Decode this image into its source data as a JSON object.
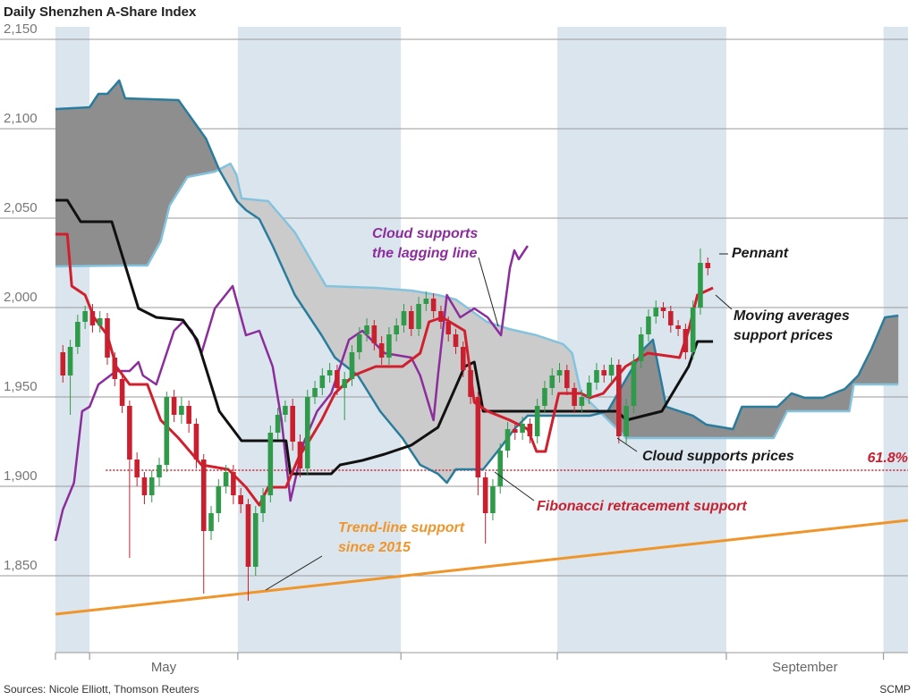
{
  "chart_data": {
    "type": "candlestick",
    "title": "Daily Shenzhen A-Share Index",
    "source": "Sources: Nicole Elliott, Thomson Reuters",
    "credit": "SCMP",
    "xlim": [
      0,
      115
    ],
    "ylim": [
      1807,
      2157
    ],
    "yticks": [
      {
        "value": 1850,
        "label": "1,850"
      },
      {
        "value": 1900,
        "label": "1,900"
      },
      {
        "value": 1950,
        "label": "1,950"
      },
      {
        "value": 2000,
        "label": "2,000"
      },
      {
        "value": 2050,
        "label": "2,050"
      },
      {
        "value": 2100,
        "label": "2,100"
      },
      {
        "value": 2150,
        "label": "2,150"
      }
    ],
    "grid": true,
    "months": {
      "starts": [
        0,
        4.6,
        24.6,
        46.6,
        67.7,
        90.5,
        111.7
      ],
      "labels": [
        null,
        "May",
        null,
        null,
        null,
        "September",
        null
      ],
      "shade_color": "#dbe5ed"
    },
    "candles": {
      "up_color": "#2f9a4a",
      "down_color": "#c8202f",
      "x": [
        1,
        2,
        3,
        4,
        5,
        6,
        7,
        8,
        9,
        10,
        11,
        12,
        13,
        14,
        15,
        16,
        17,
        18,
        19,
        20,
        21,
        22,
        23,
        24,
        25,
        26,
        27,
        28,
        29,
        30,
        31,
        32,
        33,
        34,
        35,
        36,
        37,
        38,
        39,
        40,
        41,
        42,
        43,
        44,
        45,
        46,
        47,
        48,
        49,
        50,
        51,
        52,
        53,
        54,
        55,
        56,
        57,
        58,
        59,
        60,
        61,
        62,
        63,
        64,
        65,
        66,
        67,
        68,
        69,
        70,
        71,
        72,
        73,
        74,
        75,
        76,
        77,
        78,
        79,
        80,
        81,
        82,
        83,
        84,
        85,
        86,
        87,
        88
      ],
      "open": [
        1975,
        1962,
        1978,
        1992,
        1998,
        1990,
        1994,
        1972,
        1960,
        1945,
        1915,
        1905,
        1895,
        1905,
        1912,
        1950,
        1940,
        1945,
        1935,
        1915,
        1875,
        1885,
        1900,
        1908,
        1895,
        1890,
        1855,
        1885,
        1895,
        1930,
        1940,
        1945,
        1925,
        1910,
        1950,
        1955,
        1962,
        1965,
        1955,
        1960,
        1975,
        1985,
        1990,
        1980,
        1972,
        1985,
        1990,
        1998,
        1988,
        2002,
        2005,
        1998,
        1992,
        1985,
        1978,
        1965,
        1950,
        1905,
        1885,
        1900,
        1920,
        1932,
        1930,
        1935,
        1928,
        1945,
        1955,
        1962,
        1965,
        1955,
        1945,
        1950,
        1958,
        1965,
        1962,
        1968,
        1928,
        1945,
        1970,
        1985,
        1995,
        2000,
        1998,
        1990,
        1988,
        1975,
        2000,
        2025
      ],
      "high": [
        1979,
        1982,
        1996,
        2001,
        2002,
        1998,
        1997,
        1975,
        1963,
        1948,
        1919,
        1908,
        1909,
        1916,
        1953,
        1954,
        1950,
        1948,
        1938,
        1918,
        1889,
        1904,
        1912,
        1912,
        1899,
        1893,
        1889,
        1899,
        1934,
        1944,
        1948,
        1949,
        1929,
        1954,
        1959,
        1966,
        1969,
        1968,
        1964,
        1979,
        1989,
        1994,
        1993,
        1984,
        1989,
        1994,
        2002,
        2001,
        2006,
        2009,
        2008,
        2001,
        1995,
        1988,
        1981,
        1968,
        1953,
        1908,
        1904,
        1924,
        1936,
        1935,
        1939,
        1938,
        1949,
        1959,
        1966,
        1969,
        1968,
        1958,
        1954,
        1962,
        1969,
        1968,
        1972,
        1971,
        1949,
        1974,
        1989,
        1999,
        2004,
        2003,
        2001,
        1993,
        1991,
        2004,
        2033,
        2028
      ],
      "low": [
        1958,
        1940,
        1974,
        1988,
        1986,
        1986,
        1968,
        1956,
        1941,
        1860,
        1900,
        1890,
        1891,
        1900,
        1908,
        1936,
        1935,
        1930,
        1910,
        1840,
        1870,
        1880,
        1896,
        1890,
        1885,
        1836,
        1850,
        1880,
        1891,
        1926,
        1936,
        1920,
        1905,
        1906,
        1946,
        1951,
        1958,
        1951,
        1937,
        1956,
        1971,
        1981,
        1976,
        1968,
        1968,
        1981,
        1986,
        1984,
        1984,
        1998,
        1994,
        1988,
        1981,
        1974,
        1961,
        1946,
        1895,
        1868,
        1881,
        1896,
        1916,
        1926,
        1926,
        1924,
        1924,
        1941,
        1951,
        1958,
        1951,
        1941,
        1941,
        1946,
        1954,
        1958,
        1958,
        1924,
        1924,
        1941,
        1966,
        1981,
        1991,
        1994,
        1986,
        1984,
        1971,
        1971,
        1996,
        2018
      ],
      "close": [
        1962,
        1978,
        1992,
        1998,
        1990,
        1994,
        1972,
        1960,
        1945,
        1915,
        1905,
        1895,
        1905,
        1912,
        1950,
        1940,
        1945,
        1935,
        1915,
        1875,
        1885,
        1900,
        1908,
        1895,
        1890,
        1855,
        1885,
        1895,
        1930,
        1940,
        1945,
        1925,
        1910,
        1950,
        1955,
        1962,
        1965,
        1955,
        1960,
        1975,
        1985,
        1990,
        1980,
        1972,
        1985,
        1990,
        1998,
        1988,
        2002,
        2005,
        1998,
        1992,
        1985,
        1978,
        1965,
        1950,
        1905,
        1885,
        1900,
        1920,
        1932,
        1930,
        1935,
        1928,
        1945,
        1955,
        1962,
        1965,
        1955,
        1945,
        1950,
        1958,
        1965,
        1962,
        1968,
        1928,
        1945,
        1970,
        1985,
        1995,
        2000,
        1998,
        1990,
        1988,
        1975,
        2000,
        2025,
        2022
      ]
    },
    "cloud_fill_colors": [
      "#8e8e8e",
      "#cbcbcb"
    ],
    "series": [
      {
        "color": "#84c3de",
        "x": [
          0,
          9.4,
          12.4,
          14.2,
          15.4,
          17.8,
          21.5,
          23.6,
          24.4,
          25.1,
          28.7,
          32.3,
          36.5,
          43.2,
          48,
          51.6,
          54,
          58.2,
          61.2,
          64.9,
          68.5,
          69.7,
          70.9,
          75.8,
          77,
          89,
          96.9,
          98.7,
          100.5,
          107.1,
          107.7,
          113.7
        ],
        "values": [
          2023,
          2023.5,
          2023.5,
          2037,
          2057,
          2073,
          2076,
          2080.5,
          2074.5,
          2061,
          2059.5,
          2042,
          2012,
          2011,
          2009.5,
          2007,
          2004.5,
          1992,
          1988,
          1984.5,
          1979.5,
          1974.5,
          1952,
          1932,
          1927,
          1927,
          1927,
          1942,
          1942,
          1942,
          1957,
          1957
        ]
      },
      {
        "color": "#2a7c9c",
        "x": [
          0,
          4.6,
          5.8,
          7,
          8.6,
          9.4,
          16.6,
          20.3,
          22.1,
          24.5,
          25.7,
          27.5,
          29.3,
          32.3,
          34.7,
          35.9,
          37.7,
          40.8,
          43.8,
          46.8,
          49.2,
          51.6,
          52.8,
          54,
          57.7,
          60.1,
          61.9,
          63.7,
          67.3,
          72.1,
          74.5,
          76.9,
          79.4,
          80.6,
          82.4,
          84.2,
          86,
          87.8,
          91.4,
          92.6,
          97.4,
          99.3,
          101.1,
          103.5,
          106.5,
          108.3,
          110.1,
          111.9,
          113.7
        ],
        "values": [
          2111,
          2112,
          2119.5,
          2119.5,
          2127,
          2117,
          2116,
          2094.5,
          2077,
          2059.5,
          2054.5,
          2049.5,
          2034.5,
          2007,
          1992,
          1984.5,
          1972,
          1962,
          1942,
          1927,
          1912,
          1907,
          1902,
          1909.5,
          1909.5,
          1922,
          1932,
          1939.5,
          1939.5,
          1939.5,
          1942,
          1959.5,
          1977,
          1982,
          1944.5,
          1942,
          1939.5,
          1934.5,
          1932,
          1944.5,
          1944.5,
          1952,
          1949.5,
          1949.5,
          1954.5,
          1962,
          1977,
          1994.5,
          1995.5
        ]
      },
      {
        "color": "#f0952a",
        "x": [
          0,
          115
        ],
        "values": [
          1828.5,
          1881
        ]
      },
      {
        "color": "#8c2d9c",
        "x": [
          0,
          1,
          2.5,
          3.6,
          4.6,
          5.8,
          8.2,
          10,
          11.2,
          11.8,
          13.6,
          14.8,
          16,
          17.2,
          18.4,
          19.7,
          21.5,
          23.9,
          25.7,
          27.5,
          29.3,
          30.5,
          31.7,
          33.5,
          35.3,
          37.2,
          39.6,
          41.4,
          44.4,
          48,
          49.2,
          51,
          51.6,
          52.8,
          54.6,
          56.5,
          58.3,
          60.1,
          61.3,
          61.9,
          62.5,
          63.7
        ],
        "values": [
          1869.5,
          1887,
          1902,
          1942,
          1944.5,
          1957,
          1964.5,
          1964.5,
          1969.5,
          1962,
          1957,
          1972,
          1987,
          1992,
          1987,
          1974.5,
          1999.5,
          2012,
          1984.5,
          1987,
          1967,
          1937,
          1892,
          1924.5,
          1942,
          1952,
          1982,
          1987,
          1974.5,
          1972,
          1962,
          1937,
          1962,
          2007,
          1994.5,
          1999.5,
          1994.5,
          1984.5,
          2022,
          2032,
          2027,
          2034.5
        ]
      },
      {
        "color": "#111111",
        "x": [
          0,
          1.6,
          3.4,
          7.6,
          11.2,
          13.6,
          17.2,
          19.1,
          22.1,
          25.1,
          31.1,
          31.7,
          37.2,
          38.4,
          41.4,
          44.4,
          48,
          51.6,
          55.2,
          56.5,
          57.7,
          75.8,
          77,
          81.8,
          85.4,
          86.6,
          88.7
        ],
        "values": [
          2060,
          2060,
          2048,
          2048,
          1999.5,
          1994.5,
          1993,
          1982,
          1942,
          1925.5,
          1925.5,
          1907,
          1907,
          1912,
          1914.5,
          1918,
          1923,
          1933,
          1967,
          1969.5,
          1942,
          1942,
          1937,
          1942,
          1967,
          1981,
          1981
        ]
      },
      {
        "color": "#d0202e",
        "x": [
          0,
          1.6,
          2.2,
          4,
          5.2,
          7,
          8.2,
          10,
          12.4,
          14.2,
          16.6,
          19.7,
          23.3,
          25.7,
          27.5,
          28.7,
          31.1,
          32.9,
          34.1,
          35.9,
          37.7,
          40.2,
          43.2,
          46.8,
          49.2,
          50.4,
          52.2,
          55.2,
          56.5,
          58.3,
          61.3,
          63.7,
          64.9,
          66.1,
          67.9,
          70.9,
          72.1,
          73.9,
          76.9,
          79.9,
          84.2,
          85.4,
          86.6,
          88.7
        ],
        "values": [
          2041,
          2041,
          2012,
          2007,
          1994.5,
          1984.5,
          1967,
          1957,
          1957,
          1937,
          1927,
          1912,
          1909.5,
          1899.5,
          1889.5,
          1899.5,
          1899.5,
          1917,
          1924.5,
          1937,
          1952,
          1962,
          1967,
          1967,
          1974.5,
          1992,
          1994.5,
          1987,
          1947,
          1942,
          1937,
          1932,
          1919.5,
          1919.5,
          1952,
          1952,
          1949.5,
          1952,
          1967,
          1974.5,
          1972,
          1987,
          2007,
          2011
        ]
      }
    ],
    "reference_line": {
      "value": 1909,
      "x": [
        6.8,
        115
      ],
      "label": "61.8%",
      "color": "#c8202f"
    },
    "annotations": [
      {
        "lines": [
          "Cloud supports",
          "the lagging line"
        ],
        "color": "#8c2d9c"
      },
      {
        "lines": [
          "Pennant"
        ],
        "color": "#1a1a1a"
      },
      {
        "lines": [
          "Moving averages",
          "support prices"
        ],
        "color": "#1a1a1a"
      },
      {
        "lines": [
          "Cloud supports prices"
        ],
        "color": "#1a1a1a"
      },
      {
        "lines": [
          "Fibonacci retracement support"
        ],
        "color": "#c8202f"
      },
      {
        "lines": [
          "Trend-line support",
          "since 2015"
        ],
        "color": "#f0952a"
      }
    ]
  }
}
